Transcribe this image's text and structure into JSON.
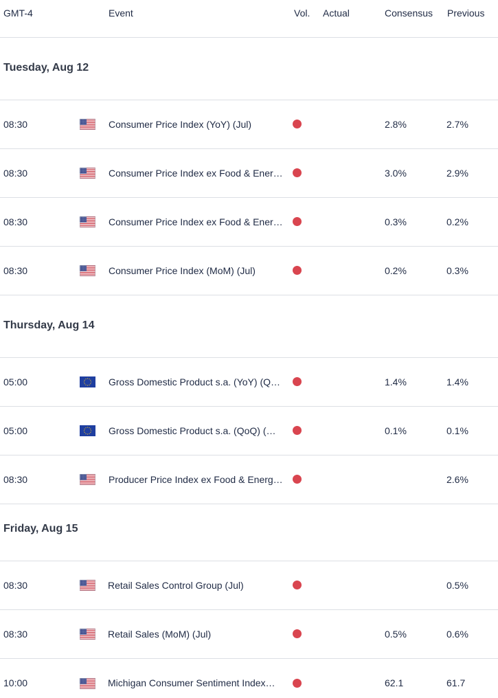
{
  "header": {
    "timezone": "GMT-4",
    "event": "Event",
    "vol": "Vol.",
    "actual": "Actual",
    "consensus": "Consensus",
    "previous": "Previous"
  },
  "colors": {
    "high_volatility": "#d9454f",
    "text": "#1f2a44",
    "divider": "#dcdfe4"
  },
  "days": [
    {
      "label": "Tuesday, Aug 12",
      "events": [
        {
          "time": "08:30",
          "flag": "us-flag-icon",
          "event": "Consumer Price Index (YoY) (Jul)",
          "vol": "high",
          "actual": "",
          "consensus": "2.8%",
          "previous": "2.7%"
        },
        {
          "time": "08:30",
          "flag": "us-flag-icon",
          "event": "Consumer Price Index ex Food & Ener…",
          "vol": "high",
          "actual": "",
          "consensus": "3.0%",
          "previous": "2.9%"
        },
        {
          "time": "08:30",
          "flag": "us-flag-icon",
          "event": "Consumer Price Index ex Food & Ener…",
          "vol": "high",
          "actual": "",
          "consensus": "0.3%",
          "previous": "0.2%"
        },
        {
          "time": "08:30",
          "flag": "us-flag-icon",
          "event": "Consumer Price Index (MoM) (Jul)",
          "vol": "high",
          "actual": "",
          "consensus": "0.2%",
          "previous": "0.3%"
        }
      ]
    },
    {
      "label": "Thursday, Aug 14",
      "events": [
        {
          "time": "05:00",
          "flag": "eu-flag-icon",
          "event": "Gross Domestic Product s.a. (YoY) (Q…",
          "vol": "high",
          "actual": "",
          "consensus": "1.4%",
          "previous": "1.4%"
        },
        {
          "time": "05:00",
          "flag": "eu-flag-icon",
          "event": "Gross Domestic Product s.a. (QoQ) (…",
          "vol": "high",
          "actual": "",
          "consensus": "0.1%",
          "previous": "0.1%"
        },
        {
          "time": "08:30",
          "flag": "us-flag-icon",
          "event": "Producer Price Index ex Food & Energ…",
          "vol": "high",
          "actual": "",
          "consensus": "",
          "previous": "2.6%"
        }
      ]
    },
    {
      "label": "Friday, Aug 15",
      "events": [
        {
          "time": "08:30",
          "flag": "us-flag-icon",
          "event": "Retail Sales Control Group (Jul)",
          "vol": "high",
          "actual": "",
          "consensus": "",
          "previous": "0.5%"
        },
        {
          "time": "08:30",
          "flag": "us-flag-icon",
          "event": "Retail Sales (MoM) (Jul)",
          "vol": "high",
          "actual": "",
          "consensus": "0.5%",
          "previous": "0.6%"
        },
        {
          "time": "10:00",
          "flag": "us-flag-icon",
          "event": "Michigan Consumer Sentiment Index…",
          "vol": "high",
          "actual": "",
          "consensus": "62.1",
          "previous": "61.7"
        }
      ]
    }
  ]
}
